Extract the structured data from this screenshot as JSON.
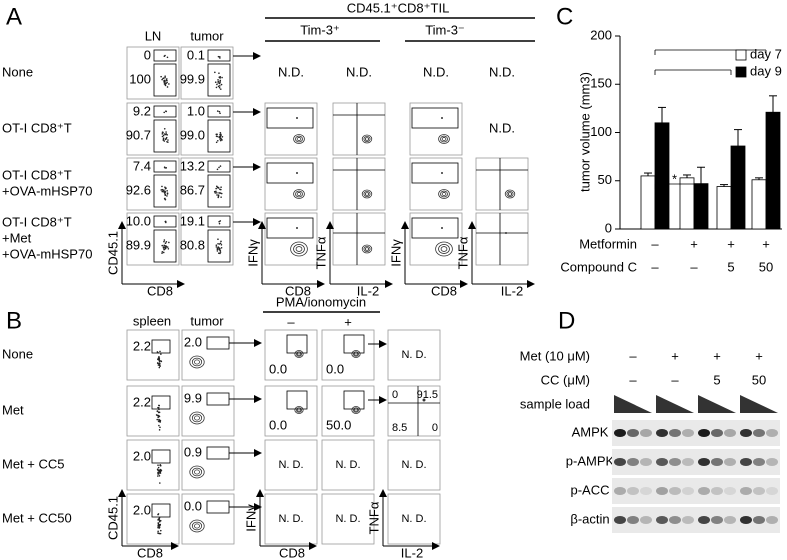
{
  "panel_a": {
    "label": "A",
    "columns": [
      "LN",
      "tumor"
    ],
    "til_title": "CD45.1⁺CD8⁺TIL",
    "til_groups": [
      "Tim-3⁺",
      "Tim-3⁻"
    ],
    "rows": [
      {
        "label": [
          "None"
        ],
        "ln": [
          "0",
          "100"
        ],
        "tumor": [
          "0.1",
          "99.9"
        ],
        "til": [
          "N.D.",
          "N.D.",
          "N.D.",
          "N.D."
        ]
      },
      {
        "label": [
          "OT-I CD8⁺T"
        ],
        "ln": [
          "9.2",
          "90.7"
        ],
        "tumor": [
          "1.0",
          "99.0"
        ],
        "til": [
          null,
          null,
          null,
          "N.D."
        ]
      },
      {
        "label": [
          "OT-I CD8⁺T",
          "+OVA-mHSP70"
        ],
        "ln": [
          "7.4",
          "92.6"
        ],
        "tumor": [
          "13.2",
          "86.7"
        ],
        "til": [
          null,
          null,
          null,
          null
        ]
      },
      {
        "label": [
          "OT-I CD8⁺T",
          "+Met",
          "+OVA-mHSP70"
        ],
        "ln": [
          "10.0",
          "89.9"
        ],
        "tumor": [
          "19.1",
          "80.8"
        ],
        "til": [
          null,
          null,
          null,
          null
        ]
      }
    ],
    "axes": [
      [
        "CD45.1",
        "CD8"
      ],
      [
        "IFNγ",
        "CD8"
      ],
      [
        "TNFα",
        "IL-2"
      ],
      [
        "IFNγ",
        "CD8"
      ],
      [
        "TNFα",
        "IL-2"
      ]
    ]
  },
  "panel_b": {
    "label": "B",
    "columns": [
      "spleen",
      "tumor"
    ],
    "stim_title": "PMA/ionomycin",
    "stim": [
      "–",
      "+"
    ],
    "rows": [
      {
        "label": "None",
        "spleen": "2.2",
        "tumor": "2.0",
        "stim": [
          "0.0",
          "0.0"
        ],
        "cytokine": "N. D."
      },
      {
        "label": "Met",
        "spleen": "2.2",
        "tumor": "9.9",
        "stim": [
          "0.0",
          "50.0"
        ],
        "cytokine": [
          "0",
          "91.5",
          "8.5",
          "0"
        ]
      },
      {
        "label": "Met + CC5",
        "spleen": "2.0",
        "tumor": "0.9",
        "stim": [
          "N. D.",
          "N. D."
        ],
        "cytokine": "N. D."
      },
      {
        "label": "Met + CC50",
        "spleen": "2.0",
        "tumor": "0.0",
        "stim": [
          "N. D.",
          "N. D."
        ],
        "cytokine": "N. D."
      }
    ],
    "axes": [
      [
        "CD45.1",
        "CD8"
      ],
      [
        "IFNγ",
        "CD8"
      ],
      [
        "TNFα",
        "IL-2"
      ]
    ]
  },
  "chart_data": {
    "type": "bar",
    "label": "C",
    "ylabel": "tumor volume (mm3)",
    "categories": [
      null,
      null,
      null,
      null
    ],
    "conditions": [
      {
        "name": "Metformin",
        "values": [
          "–",
          "+",
          "+",
          "+"
        ]
      },
      {
        "name": "Compound C",
        "values": [
          "–",
          "–",
          "5",
          "50"
        ]
      }
    ],
    "series": [
      {
        "name": "day 7",
        "color": "#ffffff",
        "values": [
          55,
          53,
          44,
          51
        ],
        "errors": [
          3,
          3,
          2,
          2
        ]
      },
      {
        "name": "day 9",
        "color": "#000000",
        "values": [
          110,
          47,
          86,
          121
        ],
        "errors": [
          16,
          17,
          17,
          17
        ]
      }
    ],
    "ylim": [
      0,
      200
    ],
    "yticks": [
      0,
      50,
      100,
      150,
      200
    ],
    "legend": "upper right",
    "annotations": [
      "*"
    ]
  },
  "panel_d": {
    "label": "D",
    "treatments": [
      {
        "name": "Met (10 μM)",
        "values": [
          "–",
          "+",
          "+",
          "+"
        ]
      },
      {
        "name": "CC (μM)",
        "values": [
          "–",
          "–",
          "5",
          "50"
        ]
      }
    ],
    "load_label": "sample load",
    "blots": [
      "AMPK",
      "p-AMPK",
      "p-ACC",
      "β-actin"
    ]
  }
}
